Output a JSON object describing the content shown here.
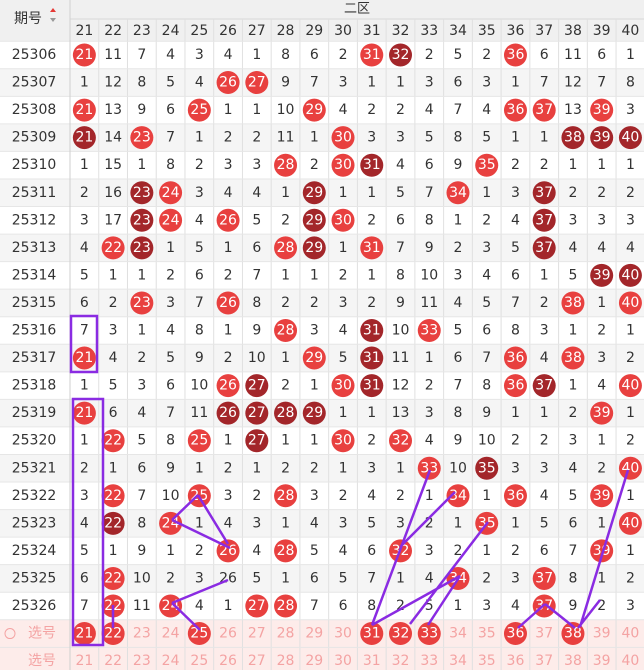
{
  "header": {
    "issue_label": "期号",
    "zone": "二区",
    "columns": [
      21,
      22,
      23,
      24,
      25,
      26,
      27,
      28,
      29,
      30,
      31,
      32,
      33,
      34,
      35,
      36,
      37,
      38,
      39,
      40
    ]
  },
  "rows": [
    {
      "issue": "25306",
      "nums": [
        21,
        11,
        7,
        4,
        3,
        4,
        1,
        8,
        6,
        2,
        31,
        32,
        2,
        5,
        2,
        36,
        6,
        11,
        6,
        1
      ],
      "balls": "rnnnnnnnnnrdnnnrnnnn"
    },
    {
      "issue": "25307",
      "nums": [
        1,
        12,
        8,
        5,
        4,
        26,
        27,
        9,
        7,
        3,
        1,
        1,
        3,
        6,
        3,
        1,
        7,
        12,
        7,
        8
      ],
      "balls": "nnnnnrrnnnnnnnnnnnnn"
    },
    {
      "issue": "25308",
      "nums": [
        21,
        13,
        9,
        6,
        25,
        1,
        1,
        10,
        29,
        4,
        2,
        2,
        4,
        7,
        4,
        36,
        37,
        13,
        39,
        3
      ],
      "balls": "rnnnrnnnrnnnnnnrrnrn"
    },
    {
      "issue": "25309",
      "nums": [
        21,
        14,
        23,
        7,
        1,
        2,
        2,
        11,
        1,
        30,
        3,
        3,
        5,
        8,
        5,
        1,
        1,
        38,
        39,
        40
      ],
      "balls": "dnrnnnnnnrnnnnnnnddd"
    },
    {
      "issue": "25310",
      "nums": [
        1,
        15,
        1,
        8,
        2,
        3,
        3,
        28,
        2,
        30,
        31,
        4,
        6,
        9,
        35,
        2,
        2,
        1,
        1,
        1
      ],
      "balls": "nnnnnnnrnrdnnnrnnnnn"
    },
    {
      "issue": "25311",
      "nums": [
        2,
        16,
        23,
        24,
        3,
        4,
        4,
        1,
        29,
        1,
        1,
        5,
        7,
        34,
        1,
        3,
        37,
        2,
        2,
        2
      ],
      "balls": "nndrnnnndnnnnrnndnnn"
    },
    {
      "issue": "25312",
      "nums": [
        3,
        17,
        23,
        24,
        4,
        26,
        5,
        2,
        29,
        30,
        2,
        6,
        8,
        1,
        2,
        4,
        37,
        3,
        3,
        3
      ],
      "balls": "nndrnrnndrnnnnnndnnn"
    },
    {
      "issue": "25313",
      "nums": [
        4,
        22,
        23,
        1,
        5,
        1,
        6,
        28,
        29,
        1,
        31,
        7,
        9,
        2,
        3,
        5,
        37,
        4,
        4,
        4
      ],
      "balls": "nrdnnnnrdnrnnnnndnnn"
    },
    {
      "issue": "25314",
      "nums": [
        5,
        1,
        1,
        2,
        6,
        2,
        7,
        1,
        1,
        2,
        1,
        8,
        10,
        3,
        4,
        6,
        1,
        5,
        39,
        40
      ],
      "balls": "nnnnnnnnnnnnnnnnnndd"
    },
    {
      "issue": "25315",
      "nums": [
        6,
        2,
        23,
        3,
        7,
        26,
        8,
        2,
        2,
        3,
        2,
        9,
        11,
        4,
        5,
        7,
        2,
        38,
        1,
        40
      ],
      "balls": "nnrnnrnnnnnnnnnnnrnr"
    },
    {
      "issue": "25316",
      "nums": [
        7,
        3,
        1,
        4,
        8,
        1,
        9,
        28,
        3,
        4,
        31,
        10,
        33,
        5,
        6,
        8,
        3,
        1,
        2,
        1
      ],
      "balls": "nnnnnnnrnndnrnnnnnnn"
    },
    {
      "issue": "25317",
      "nums": [
        21,
        4,
        2,
        5,
        9,
        2,
        10,
        1,
        29,
        5,
        31,
        11,
        1,
        6,
        7,
        36,
        4,
        38,
        3,
        2
      ],
      "balls": "rnnnnnnnrndnnnnrnrnn"
    },
    {
      "issue": "25318",
      "nums": [
        1,
        5,
        3,
        6,
        10,
        26,
        27,
        2,
        1,
        30,
        31,
        12,
        2,
        7,
        8,
        36,
        37,
        1,
        4,
        40
      ],
      "balls": "nnnnnrdnnrdnnnnrdnnr"
    },
    {
      "issue": "25319",
      "nums": [
        21,
        6,
        4,
        7,
        11,
        26,
        27,
        28,
        29,
        1,
        1,
        13,
        3,
        8,
        9,
        1,
        1,
        2,
        39,
        1
      ],
      "balls": "rnnnnddddnnnnnnnnnrn"
    },
    {
      "issue": "25320",
      "nums": [
        1,
        22,
        5,
        8,
        25,
        1,
        27,
        1,
        1,
        30,
        2,
        32,
        4,
        9,
        10,
        2,
        2,
        3,
        1,
        2
      ],
      "balls": "nrnnrndnnrnrnnnnnnnn"
    },
    {
      "issue": "25321",
      "nums": [
        2,
        1,
        6,
        9,
        1,
        2,
        1,
        2,
        2,
        1,
        3,
        1,
        33,
        10,
        35,
        3,
        3,
        4,
        2,
        40
      ],
      "balls": "nnnnnnnnnnnnrndnnnnr"
    },
    {
      "issue": "25322",
      "nums": [
        3,
        22,
        7,
        10,
        25,
        3,
        2,
        28,
        3,
        2,
        4,
        2,
        1,
        34,
        1,
        36,
        4,
        5,
        39,
        1
      ],
      "balls": "nrnnrnnrnnnnnrnrnnrn"
    },
    {
      "issue": "25323",
      "nums": [
        4,
        22,
        8,
        24,
        1,
        4,
        3,
        1,
        4,
        3,
        5,
        3,
        2,
        1,
        35,
        1,
        5,
        6,
        1,
        40
      ],
      "balls": "ndnrnnnnnnnnnnrnnnnr"
    },
    {
      "issue": "25324",
      "nums": [
        5,
        1,
        9,
        1,
        2,
        26,
        4,
        28,
        5,
        4,
        6,
        32,
        3,
        2,
        1,
        2,
        6,
        7,
        39,
        1
      ],
      "balls": "nnnnnrnrnnnrnnnnnnrn"
    },
    {
      "issue": "25325",
      "nums": [
        6,
        22,
        10,
        2,
        3,
        26,
        5,
        1,
        6,
        5,
        7,
        1,
        4,
        34,
        2,
        3,
        37,
        8,
        1,
        2
      ],
      "balls": "nrnnnnnnnnnnnrnnrnnn"
    },
    {
      "issue": "25326",
      "nums": [
        7,
        22,
        11,
        24,
        4,
        1,
        27,
        28,
        7,
        6,
        8,
        2,
        5,
        1,
        3,
        4,
        37,
        9,
        2,
        3
      ],
      "balls": "nrnrnnrrnnnnnnnnrnnn"
    }
  ],
  "picker": {
    "label": "选号",
    "numbers": [
      21,
      22,
      23,
      24,
      25,
      26,
      27,
      28,
      29,
      30,
      31,
      32,
      33,
      34,
      35,
      36,
      37,
      38,
      39,
      40
    ],
    "balls": "rrnnrnnnnnrrrnnrnrnn"
  },
  "footer": {
    "label": "选号",
    "numbers": [
      21,
      22,
      23,
      24,
      25,
      26,
      27,
      28,
      29,
      30,
      31,
      32,
      33,
      34,
      35,
      36,
      37,
      38,
      39,
      40
    ]
  }
}
